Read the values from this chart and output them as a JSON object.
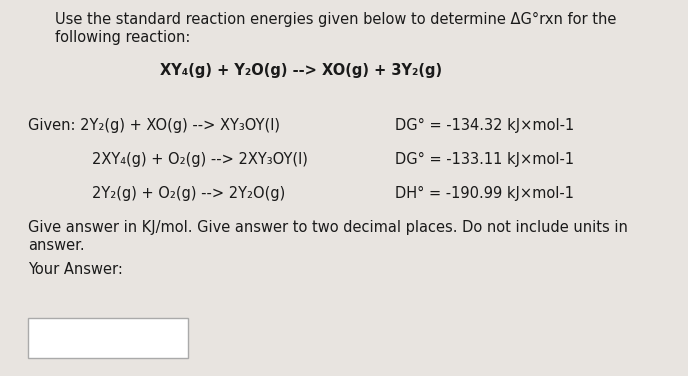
{
  "bg_color": "#e8e4e0",
  "title_line1": "Use the standard reaction energies given below to determine ΔG°rxn for the",
  "title_line2": "following reaction:",
  "target_reaction": "XY₄(g) + Y₂O(g) --> XO(g) + 3Y₂(g)",
  "given_label": "Given: ",
  "rxn1_left": "2Y₂(g) + XO(g) --> XY₃OY(l)",
  "rxn1_right": "DG° = -134.32 kJ×mol-1",
  "rxn2_left": "2XY₄(g) + O₂(g) --> 2XY₃OY(l)",
  "rxn2_right": "DG° = -133.11 kJ×mol-1",
  "rxn3_left": "2Y₂(g) + O₂(g) --> 2Y₂O(g)",
  "rxn3_right": "DH° = -190.99 kJ×mol-1",
  "footer_line1": "Give answer in KJ/mol. Give answer to two decimal places. Do not include units in",
  "footer_line2": "answer.",
  "your_answer_label": "Your Answer:",
  "text_color": "#1a1a1a",
  "box_color": "#ffffff",
  "font_size_body": 10.5,
  "font_size_rxn": 10.5
}
